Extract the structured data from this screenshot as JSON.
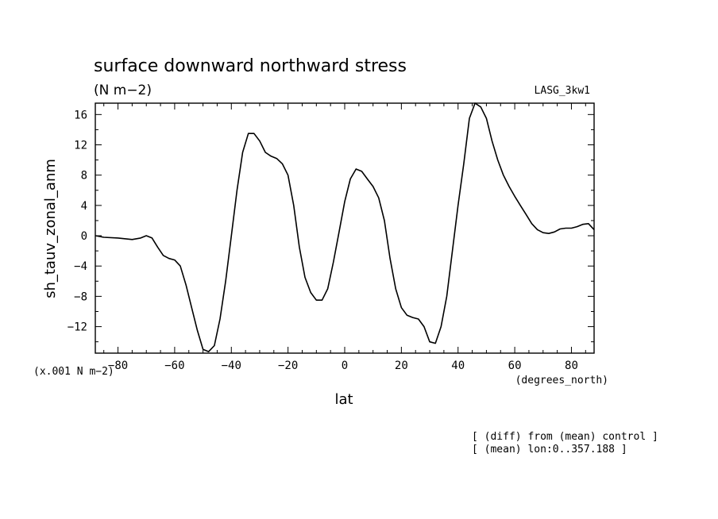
{
  "chart_data": {
    "type": "line",
    "title": "surface downward northward stress",
    "units": "(N m−2)",
    "model_label": "LASG_3kw1",
    "ylabel": "sh_tauv_zonal_anm",
    "xlabel": "lat",
    "y_scale_note": "(x.001 N m−2)",
    "x_unit": "(degrees_north)",
    "notes": [
      "[ (diff) from (mean) control ]",
      "[ (mean) lon:0..357.188 ]"
    ],
    "xlim": [
      -88,
      88
    ],
    "ylim": [
      -15.5,
      17.5
    ],
    "x_ticks": [
      -80,
      -60,
      -40,
      -20,
      0,
      20,
      40,
      60,
      80
    ],
    "x_tick_labels": [
      "−80",
      "−60",
      "−40",
      "−20",
      "0",
      "20",
      "40",
      "60",
      "80"
    ],
    "y_ticks": [
      -12,
      -8,
      -4,
      0,
      4,
      8,
      12,
      16
    ],
    "y_tick_labels": [
      "−12",
      "−8",
      "−4",
      "0",
      "4",
      "8",
      "12",
      "16"
    ],
    "grid": false,
    "series": [
      {
        "x": [
          -88,
          -85,
          -80,
          -75,
          -72,
          -70,
          -68,
          -66,
          -64,
          -62,
          -60,
          -58,
          -56,
          -54,
          -52,
          -50,
          -48,
          -46,
          -44,
          -42,
          -40,
          -38,
          -36,
          -34,
          -32,
          -30,
          -28,
          -26,
          -24,
          -22,
          -20,
          -18,
          -16,
          -14,
          -12,
          -10,
          -8,
          -6,
          -4,
          -2,
          0,
          2,
          4,
          6,
          8,
          10,
          12,
          14,
          16,
          18,
          20,
          22,
          24,
          26,
          28,
          30,
          32,
          34,
          36,
          38,
          40,
          42,
          44,
          46,
          48,
          50,
          52,
          54,
          56,
          58,
          60,
          62,
          64,
          66,
          68,
          70,
          72,
          74,
          76,
          78,
          80,
          82,
          84,
          86,
          88
        ],
        "y": [
          0,
          -0.2,
          -0.3,
          -0.5,
          -0.3,
          0,
          -0.3,
          -1.5,
          -2.6,
          -3,
          -3.2,
          -4,
          -6.5,
          -9.5,
          -12.5,
          -15,
          -15.3,
          -14.5,
          -11,
          -6,
          0,
          6,
          11,
          13.5,
          13.5,
          12.5,
          11,
          10.5,
          10.2,
          9.5,
          8,
          4,
          -1.5,
          -5.5,
          -7.5,
          -8.5,
          -8.5,
          -7,
          -3.5,
          0.5,
          4.5,
          7.5,
          8.8,
          8.5,
          7.5,
          6.5,
          5,
          2,
          -3,
          -7,
          -9.5,
          -10.5,
          -10.8,
          -11,
          -12,
          -14,
          -14.2,
          -12,
          -8,
          -2,
          4,
          9.5,
          15.5,
          17.5,
          17,
          15.5,
          12.5,
          10,
          8,
          6.5,
          5.2,
          4,
          2.8,
          1.6,
          0.8,
          0.4,
          0.3,
          0.5,
          0.9,
          1,
          1,
          1.2,
          1.5,
          1.6,
          0.8
        ]
      }
    ]
  }
}
